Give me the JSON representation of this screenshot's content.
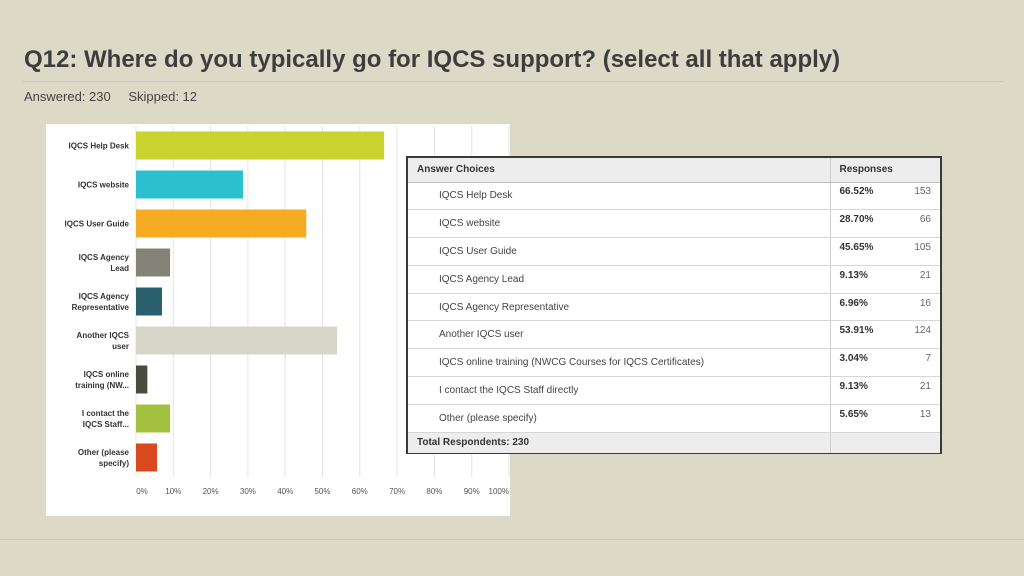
{
  "header": {
    "title": "Q12: Where do you typically go for IQCS support? (select all that apply)",
    "answered": "Answered: 230",
    "skipped": "Skipped: 12"
  },
  "chart_data": {
    "type": "bar",
    "orientation": "horizontal",
    "categories": [
      [
        "IQCS Help Desk"
      ],
      [
        "IQCS website"
      ],
      [
        "IQCS User Guide"
      ],
      [
        "IQCS Agency",
        "Lead"
      ],
      [
        "IQCS Agency",
        "Representative"
      ],
      [
        "Another IQCS",
        "user"
      ],
      [
        "IQCS online",
        "training (NW..."
      ],
      [
        "I contact the",
        "IQCS Staff..."
      ],
      [
        "Other (please",
        "specify)"
      ]
    ],
    "values": [
      66.52,
      28.7,
      45.65,
      9.13,
      6.96,
      53.91,
      3.04,
      9.13,
      5.65
    ],
    "colors": [
      "#c8d32e",
      "#2cc0cf",
      "#f5ab22",
      "#858377",
      "#2a5f6d",
      "#d7d5c7",
      "#4a4a40",
      "#a3c13e",
      "#d9491e"
    ],
    "xticks": [
      "0%",
      "10%",
      "20%",
      "30%",
      "40%",
      "50%",
      "60%",
      "70%",
      "80%",
      "90%",
      "100%"
    ],
    "xlim": [
      0,
      100
    ],
    "grid": true
  },
  "table": {
    "header_choice": "Answer Choices",
    "header_responses": "Responses",
    "rows": [
      {
        "choice": "IQCS Help Desk",
        "pct": "66.52%",
        "count": "153"
      },
      {
        "choice": "IQCS website",
        "pct": "28.70%",
        "count": "66"
      },
      {
        "choice": "IQCS User Guide",
        "pct": "45.65%",
        "count": "105"
      },
      {
        "choice": "IQCS Agency Lead",
        "pct": "9.13%",
        "count": "21"
      },
      {
        "choice": "IQCS Agency Representative",
        "pct": "6.96%",
        "count": "16"
      },
      {
        "choice": "Another IQCS user",
        "pct": "53.91%",
        "count": "124"
      },
      {
        "choice": "IQCS online training (NWCG Courses for IQCS Certificates)",
        "pct": "3.04%",
        "count": "7"
      },
      {
        "choice": "I contact the IQCS Staff directly",
        "pct": "9.13%",
        "count": "21"
      },
      {
        "choice": "Other (please specify)",
        "pct": "5.65%",
        "count": "13"
      }
    ],
    "total_label": "Total Respondents: 230"
  }
}
